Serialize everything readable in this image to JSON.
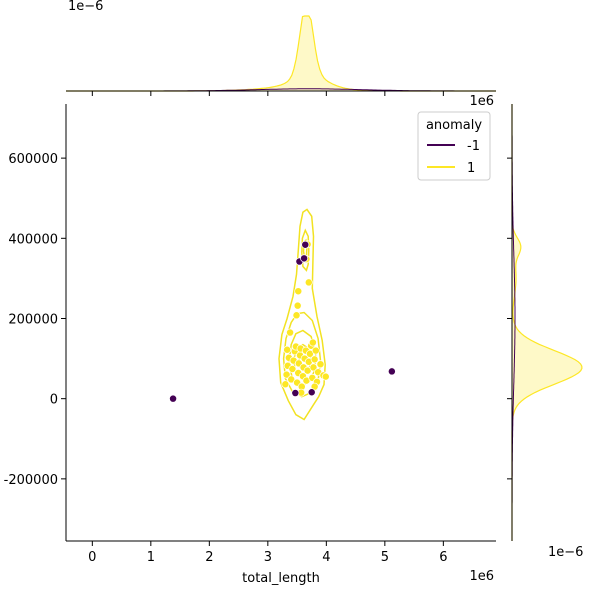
{
  "chart_data": {
    "type": "scatter",
    "title": "",
    "xlabel": "total_length",
    "ylabel": "",
    "x_exponent": "1e6",
    "y_exponent": "1e6",
    "top_marginal_exponent": "1e−6",
    "right_marginal_exponent": "1e−6",
    "xlim": [
      -0.45,
      6.9
    ],
    "ylim": [
      -355000,
      735000
    ],
    "x_ticks": [
      0,
      1,
      2,
      3,
      4,
      5,
      6
    ],
    "y_ticks": [
      -200000,
      0,
      200000,
      400000,
      600000
    ],
    "grid": false,
    "legend": {
      "title": "anomaly",
      "placement": "top-right",
      "entries": [
        {
          "label": "-1",
          "color": "#440154"
        },
        {
          "label": "1",
          "color": "#fde725"
        }
      ]
    },
    "colors": {
      "anomaly": "#440154",
      "normal": "#fde725",
      "contour": "#f2e222"
    },
    "series": [
      {
        "name": "-1",
        "color": "#440154",
        "points": [
          {
            "x": 1.38,
            "y": 0
          },
          {
            "x": 5.12,
            "y": 68000
          },
          {
            "x": 3.47,
            "y": 14000
          },
          {
            "x": 3.75,
            "y": 16000
          },
          {
            "x": 3.54,
            "y": 342000
          },
          {
            "x": 3.64,
            "y": 384000
          },
          {
            "x": 3.62,
            "y": 350000
          }
        ]
      },
      {
        "name": "1",
        "color": "#fde725",
        "points": [
          {
            "x": 3.3,
            "y": 36000
          },
          {
            "x": 3.32,
            "y": 60000
          },
          {
            "x": 3.34,
            "y": 82000
          },
          {
            "x": 3.36,
            "y": 102000
          },
          {
            "x": 3.33,
            "y": 122000
          },
          {
            "x": 3.38,
            "y": 165000
          },
          {
            "x": 3.4,
            "y": 48000
          },
          {
            "x": 3.42,
            "y": 74000
          },
          {
            "x": 3.44,
            "y": 95000
          },
          {
            "x": 3.46,
            "y": 118000
          },
          {
            "x": 3.48,
            "y": 130000
          },
          {
            "x": 3.5,
            "y": 40000
          },
          {
            "x": 3.52,
            "y": 64000
          },
          {
            "x": 3.53,
            "y": 88000
          },
          {
            "x": 3.55,
            "y": 108000
          },
          {
            "x": 3.56,
            "y": 125000
          },
          {
            "x": 3.58,
            "y": 30000
          },
          {
            "x": 3.6,
            "y": 56000
          },
          {
            "x": 3.61,
            "y": 78000
          },
          {
            "x": 3.63,
            "y": 100000
          },
          {
            "x": 3.65,
            "y": 120000
          },
          {
            "x": 3.66,
            "y": 45000
          },
          {
            "x": 3.68,
            "y": 70000
          },
          {
            "x": 3.7,
            "y": 92000
          },
          {
            "x": 3.72,
            "y": 112000
          },
          {
            "x": 3.74,
            "y": 132000
          },
          {
            "x": 3.76,
            "y": 52000
          },
          {
            "x": 3.78,
            "y": 78000
          },
          {
            "x": 3.8,
            "y": 98000
          },
          {
            "x": 3.82,
            "y": 120000
          },
          {
            "x": 3.84,
            "y": 42000
          },
          {
            "x": 3.86,
            "y": 66000
          },
          {
            "x": 3.9,
            "y": 86000
          },
          {
            "x": 3.95,
            "y": 58000
          },
          {
            "x": 3.99,
            "y": 55000
          },
          {
            "x": 3.77,
            "y": 140000
          },
          {
            "x": 3.49,
            "y": 208000
          },
          {
            "x": 3.51,
            "y": 232000
          },
          {
            "x": 3.52,
            "y": 268000
          },
          {
            "x": 3.7,
            "y": 290000
          },
          {
            "x": 3.66,
            "y": 348000
          },
          {
            "x": 3.68,
            "y": 385000
          },
          {
            "x": 3.8,
            "y": 30000
          },
          {
            "x": 3.57,
            "y": 15000
          }
        ]
      }
    ],
    "contours_label": "1"
  }
}
